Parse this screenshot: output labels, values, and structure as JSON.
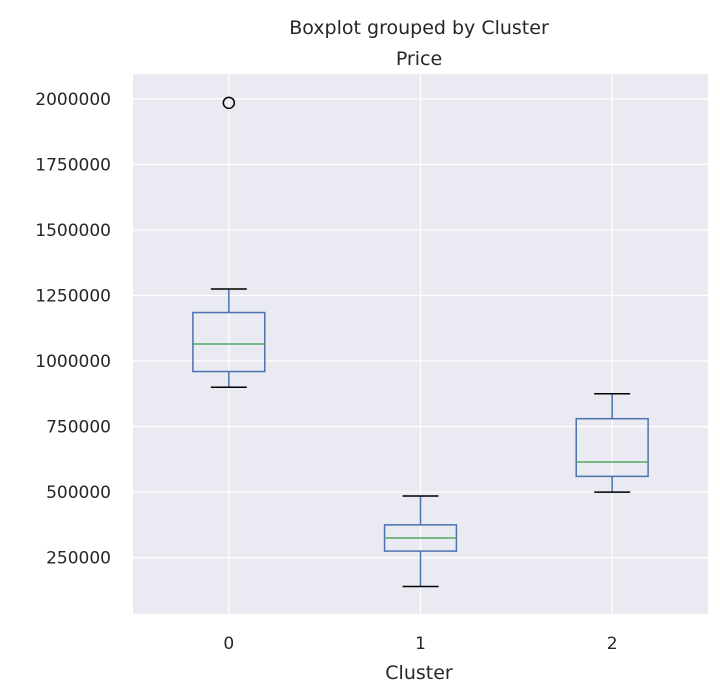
{
  "chart_data": {
    "type": "box",
    "suptitle": "Boxplot grouped by Cluster",
    "title": "Price",
    "xlabel": "Cluster",
    "ylabel": "",
    "categories": [
      "0",
      "1",
      "2"
    ],
    "ylim": [
      35000,
      2095000
    ],
    "yticks": [
      250000,
      500000,
      750000,
      1000000,
      1250000,
      1500000,
      1750000,
      2000000
    ],
    "yticklabels": [
      "250000",
      "500000",
      "750000",
      "1000000",
      "1250000",
      "1500000",
      "1750000",
      "2000000"
    ],
    "grid": true,
    "boxes": [
      {
        "category": "0",
        "whislo": 900000,
        "q1": 960000,
        "med": 1065000,
        "q3": 1185000,
        "whishi": 1275000,
        "fliers": [
          1985000
        ]
      },
      {
        "category": "1",
        "whislo": 140000,
        "q1": 275000,
        "med": 325000,
        "q3": 375000,
        "whishi": 485000,
        "fliers": []
      },
      {
        "category": "2",
        "whislo": 500000,
        "q1": 560000,
        "med": 615000,
        "q3": 780000,
        "whishi": 875000,
        "fliers": []
      }
    ],
    "colors": {
      "background": "#eaeaf2",
      "grid": "#ffffff",
      "box": "#4c72b0",
      "median": "#55a868",
      "whisker_cap": "#000000",
      "flier": "#000000"
    }
  }
}
